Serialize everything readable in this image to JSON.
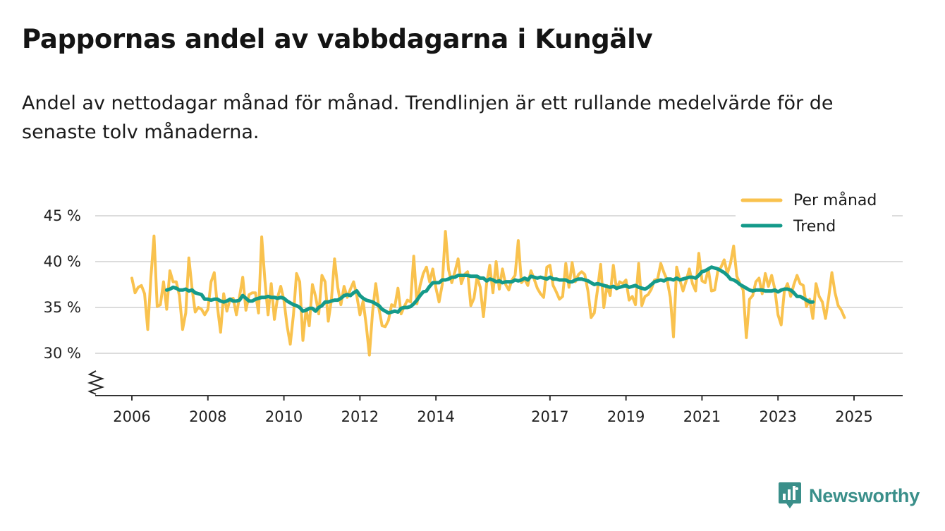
{
  "title": "Pappornas andel av vabbdagarna i Kungälv",
  "subtitle": "Andel av nettodagar månad för månad. Trendlinjen är ett rullande medelvärde för de senaste tolv månaderna.",
  "brand": {
    "name": "Newsworthy",
    "icon": "newsworthy-logo-icon",
    "color": "#3a8f8a"
  },
  "colors": {
    "monthly": "#f9c24e",
    "trend": "#149a8a",
    "grid": "#dcdcdc",
    "axis": "#333333"
  },
  "chart_data": {
    "type": "line",
    "title": "Pappornas andel av vabbdagarna i Kungälv",
    "xlabel": "",
    "ylabel": "",
    "ylim": [
      25.5,
      45
    ],
    "yticks": [
      30,
      35,
      40,
      45
    ],
    "ytick_labels": [
      "30 %",
      "35 %",
      "40 %",
      "45 %"
    ],
    "xlim": [
      2005.75,
      2026.35
    ],
    "xticks": [
      2006,
      2008,
      2010,
      2012,
      2014,
      2017,
      2019,
      2021,
      2023,
      2025
    ],
    "xtick_labels": [
      "2006",
      "2008",
      "2010",
      "2012",
      "2014",
      "2017",
      "2019",
      "2021",
      "2023",
      "2025"
    ],
    "axis_break": true,
    "legend_position": "top-right",
    "series": [
      {
        "name": "Per månad",
        "start": 2006.0,
        "step_months": 1,
        "values": [
          38.2,
          36.6,
          37.2,
          37.4,
          36.5,
          32.6,
          38.2,
          42.8,
          35.1,
          35.3,
          37.8,
          34.8,
          39.0,
          37.8,
          37.8,
          36.3,
          32.6,
          34.4,
          40.4,
          37.1,
          34.5,
          35.0,
          34.8,
          34.2,
          34.8,
          37.8,
          38.8,
          35.1,
          32.3,
          36.5,
          34.6,
          35.9,
          36.0,
          34.2,
          36.2,
          38.3,
          34.7,
          36.4,
          36.6,
          36.6,
          34.4,
          42.7,
          38.0,
          34.2,
          37.6,
          33.7,
          36.1,
          37.3,
          35.8,
          33.0,
          31.0,
          34.2,
          38.7,
          37.8,
          31.4,
          34.8,
          33.0,
          37.5,
          36.2,
          34.3,
          38.5,
          37.8,
          33.5,
          35.8,
          40.3,
          37.2,
          35.3,
          37.3,
          36.1,
          37.0,
          37.8,
          36.3,
          34.2,
          35.7,
          33.0,
          29.8,
          34.5,
          37.6,
          34.9,
          33.0,
          32.9,
          33.6,
          35.3,
          35.1,
          37.1,
          34.3,
          35.1,
          35.8,
          35.6,
          40.6,
          35.4,
          37.4,
          38.7,
          39.4,
          37.8,
          39.2,
          37.1,
          35.6,
          37.5,
          43.3,
          39.1,
          37.7,
          38.9,
          40.3,
          37.6,
          38.6,
          38.9,
          35.2,
          36.0,
          38.3,
          37.2,
          34.0,
          37.6,
          39.6,
          36.6,
          40.0,
          37.0,
          39.2,
          37.5,
          36.9,
          38.0,
          38.5,
          42.3,
          37.7,
          38.1,
          37.4,
          39.0,
          38.1,
          37.1,
          36.5,
          36.1,
          39.4,
          39.6,
          37.4,
          36.7,
          35.9,
          36.2,
          39.8,
          37.2,
          39.9,
          37.8,
          38.6,
          38.9,
          38.6,
          36.8,
          33.9,
          34.4,
          36.9,
          39.7,
          35.0,
          37.4,
          36.3,
          39.6,
          37.0,
          37.8,
          37.6,
          38.0,
          35.8,
          36.2,
          35.3,
          39.8,
          35.2,
          36.2,
          36.4,
          37.0,
          38.0,
          38.1,
          39.8,
          38.8,
          38.0,
          36.1,
          31.8,
          39.4,
          38.0,
          36.8,
          37.9,
          39.2,
          37.6,
          36.8,
          40.9,
          37.9,
          37.7,
          39.2,
          36.8,
          36.9,
          39.0,
          39.4,
          40.2,
          38.7,
          39.8,
          41.7,
          38.4,
          37.6,
          36.9,
          31.7,
          35.9,
          36.3,
          37.8,
          38.2,
          36.5,
          38.7,
          37.3,
          38.5,
          37.0,
          34.2,
          33.1,
          36.8,
          37.6,
          36.2,
          37.5,
          38.5,
          37.6,
          37.4,
          35.1,
          35.9,
          33.8,
          37.6,
          36.2,
          35.6,
          33.8,
          36.1,
          38.8,
          36.6,
          35.2,
          34.7,
          33.9
        ]
      },
      {
        "name": "Trend",
        "start": 2006.9167,
        "step_months": 1,
        "values": [
          36.9,
          37.0,
          37.2,
          37.1,
          36.9,
          36.9,
          37.0,
          36.8,
          36.9,
          36.6,
          36.5,
          36.4,
          35.9,
          35.9,
          35.8,
          35.9,
          35.9,
          35.7,
          35.6,
          35.7,
          35.9,
          35.7,
          35.7,
          35.8,
          36.3,
          36.0,
          35.7,
          35.7,
          35.9,
          36.0,
          36.1,
          36.1,
          36.2,
          36.1,
          36.1,
          36.0,
          36.1,
          36.0,
          35.7,
          35.5,
          35.3,
          35.2,
          35.0,
          34.6,
          34.7,
          34.9,
          34.9,
          34.6,
          35.0,
          35.2,
          35.6,
          35.6,
          35.7,
          35.8,
          35.8,
          36.0,
          36.3,
          36.4,
          36.3,
          36.6,
          36.8,
          36.3,
          36.0,
          35.8,
          35.7,
          35.6,
          35.4,
          35.2,
          34.8,
          34.6,
          34.4,
          34.5,
          34.6,
          34.5,
          34.9,
          35.0,
          35.0,
          35.1,
          35.4,
          35.8,
          36.3,
          36.7,
          36.8,
          37.3,
          37.7,
          37.7,
          37.7,
          38.0,
          38.0,
          38.1,
          38.3,
          38.3,
          38.5,
          38.5,
          38.5,
          38.5,
          38.4,
          38.4,
          38.4,
          38.2,
          38.2,
          37.9,
          38.1,
          38.0,
          37.8,
          37.9,
          37.7,
          37.8,
          37.8,
          37.8,
          38.0,
          37.9,
          38.0,
          38.2,
          38.0,
          38.4,
          38.3,
          38.2,
          38.3,
          38.2,
          38.1,
          38.3,
          38.1,
          38.1,
          38.0,
          38.0,
          38.0,
          37.8,
          37.8,
          38.0,
          38.1,
          38.1,
          38.0,
          37.9,
          37.7,
          37.5,
          37.6,
          37.5,
          37.4,
          37.3,
          37.2,
          37.3,
          37.1,
          37.2,
          37.3,
          37.4,
          37.2,
          37.3,
          37.4,
          37.2,
          37.1,
          37.0,
          37.2,
          37.5,
          37.8,
          37.9,
          38.0,
          37.9,
          38.1,
          38.1,
          38.0,
          38.2,
          38.0,
          38.1,
          38.2,
          38.3,
          38.3,
          38.2,
          38.5,
          38.9,
          39.0,
          39.2,
          39.4,
          39.3,
          39.2,
          39.0,
          38.8,
          38.5,
          38.1,
          38.0,
          37.8,
          37.5,
          37.3,
          37.1,
          36.9,
          36.8,
          36.9,
          36.9,
          36.9,
          36.8,
          36.8,
          36.8,
          36.9,
          36.7,
          36.9,
          37.0,
          37.0,
          36.9,
          36.6,
          36.2,
          36.2,
          36.0,
          35.8,
          35.6,
          35.6
        ]
      }
    ]
  }
}
